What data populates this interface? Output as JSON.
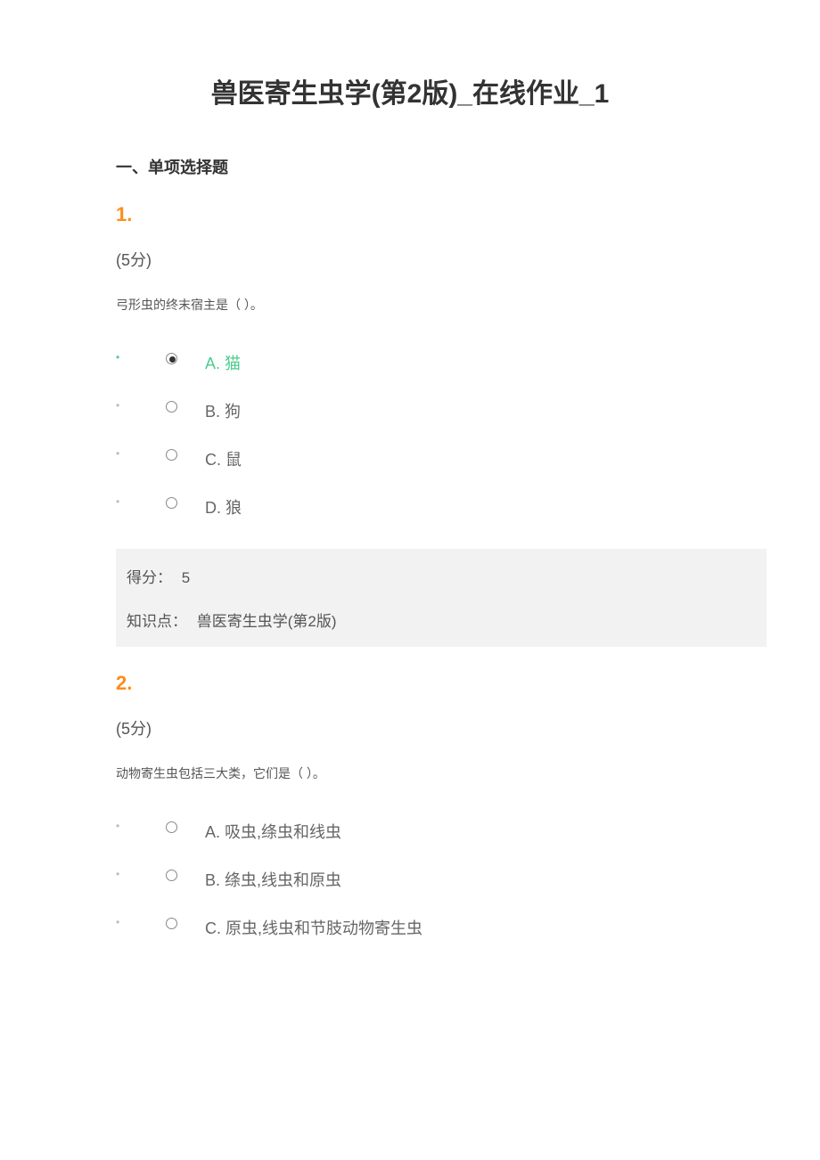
{
  "title": "兽医寄生虫学(第2版)_在线作业_1",
  "section_heading": "一、单项选择题",
  "questions": [
    {
      "number": "1.",
      "points": "(5分)",
      "text": "弓形虫的终末宿主是（ ）。",
      "choices": [
        {
          "label": "A. 猫",
          "selected": true,
          "correct": true
        },
        {
          "label": "B. 狗",
          "selected": false,
          "correct": false
        },
        {
          "label": "C. 鼠",
          "selected": false,
          "correct": false
        },
        {
          "label": "D. 狼",
          "selected": false,
          "correct": false
        }
      ],
      "feedback": {
        "score_label": "得分：",
        "score_value": "5",
        "kp_label": "知识点：",
        "kp_value": "兽医寄生虫学(第2版)"
      }
    },
    {
      "number": "2.",
      "points": "(5分)",
      "text": "动物寄生虫包括三大类，它们是（ ）。",
      "choices": [
        {
          "label": "A. 吸虫,绦虫和线虫",
          "selected": false,
          "correct": false
        },
        {
          "label": "B. 绦虫,线虫和原虫",
          "selected": false,
          "correct": false
        },
        {
          "label": "C. 原虫,线虫和节肢动物寄生虫",
          "selected": false,
          "correct": false
        }
      ],
      "feedback": null
    }
  ],
  "colors": {
    "title": "#333333",
    "accent": "#ff8c1a",
    "correct": "#4dcc8f",
    "body_text": "#555555",
    "choice_text": "#666666",
    "bullet": "#bbbbbb",
    "feedback_bg": "#f3f2f2",
    "page_bg": "#ffffff"
  },
  "typography": {
    "title_fontsize": 30,
    "section_fontsize": 18,
    "qnum_fontsize": 22,
    "points_fontsize": 18,
    "qtext_fontsize": 14,
    "choice_fontsize": 18,
    "feedback_fontsize": 17
  }
}
